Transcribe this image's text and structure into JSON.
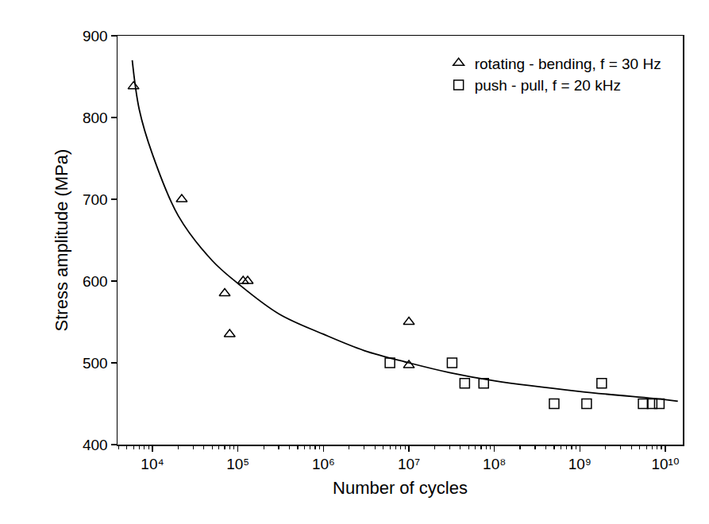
{
  "chart_data": {
    "type": "scatter",
    "x_label": "Number of cycles",
    "y_label": "Stress amplitude (MPa)",
    "log": "x",
    "grid": false,
    "legend": "top right",
    "xlim": [
      3900,
      16000000000
    ],
    "xticks": [
      {
        "value": 10000,
        "label": "10⁴"
      },
      {
        "value": 100000,
        "label": "10⁵"
      },
      {
        "value": 1000000,
        "label": "10⁶"
      },
      {
        "value": 10000000,
        "label": "10⁷"
      },
      {
        "value": 100000000,
        "label": "10⁸"
      },
      {
        "value": 1000000000,
        "label": "10⁹"
      },
      {
        "value": 10000000000,
        "label": "10¹⁰"
      }
    ],
    "ylim": [
      400,
      900
    ],
    "yticks": [
      400,
      500,
      600,
      700,
      800,
      900
    ],
    "series": [
      {
        "name": "rotating - bending, f = 30 Hz",
        "type": "scatter",
        "marker": "triangle",
        "color": "#000000",
        "x": [
          6000,
          22000,
          70000,
          80000,
          115000,
          130000,
          10000000,
          10000000
        ],
        "values": [
          838,
          700,
          585,
          535,
          600,
          600,
          550,
          497
        ]
      },
      {
        "name": "push - pull, f = 20 kHz",
        "type": "scatter",
        "marker": "square",
        "color": "#000000",
        "x": [
          6000000,
          32000000,
          45000000,
          75000000,
          500000000,
          1200000000,
          1800000000,
          5500000000,
          7000000000,
          8500000000
        ],
        "values": [
          500,
          500,
          475,
          475,
          450,
          450,
          475,
          450,
          450,
          450
        ]
      },
      {
        "type": "line",
        "color": "#000000",
        "x": [
          5800,
          7000,
          10000,
          20000,
          50000,
          100000,
          300000,
          1000000,
          3000000,
          10000000,
          30000000,
          100000000,
          1000000000,
          10000000000,
          14000000000
        ],
        "values": [
          870,
          810,
          755,
          680,
          625,
          597,
          560,
          535,
          515,
          500,
          488,
          478,
          465,
          455,
          453
        ]
      }
    ]
  }
}
